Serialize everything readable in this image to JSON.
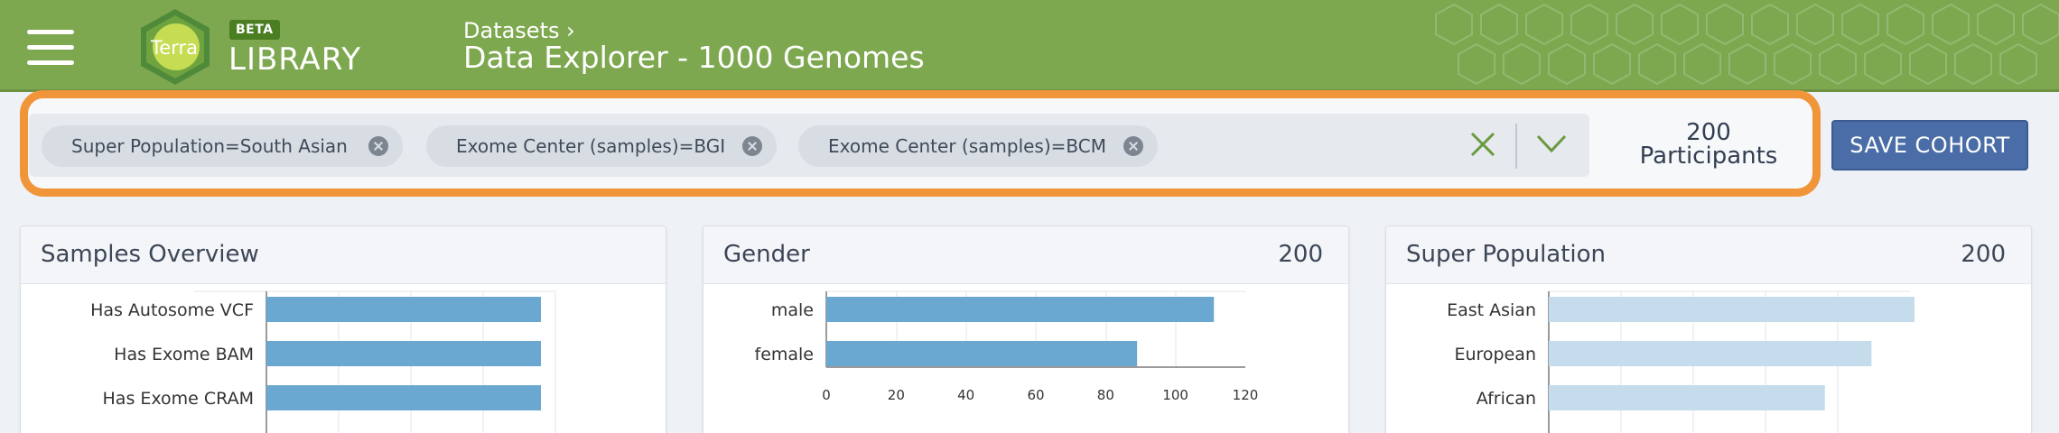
{
  "header": {
    "logo_text": "Terra",
    "beta_badge": "BETA",
    "library_label": "LIBRARY",
    "breadcrumb": "Datasets ›",
    "title": "Data Explorer - 1000 Genomes"
  },
  "filters": {
    "chips": [
      {
        "label": "Super Population=South Asian"
      },
      {
        "label": "Exome Center (samples)=BGI"
      },
      {
        "label": "Exome Center (samples)=BCM"
      }
    ],
    "count_number": "200",
    "count_label": "Participants",
    "save_label": "SAVE COHORT"
  },
  "colors": {
    "header_green": "#7ea850",
    "highlight_orange": "#f0953a",
    "save_blue": "#4a6da7",
    "bar_blue": "#6aa8d2",
    "bar_light_blue": "#c5dcec"
  },
  "cards": {
    "samples": {
      "title": "Samples Overview",
      "chart_data": {
        "type": "bar",
        "orientation": "horizontal",
        "categories": [
          "Has Autosome VCF",
          "Has Exome BAM",
          "Has Exome CRAM"
        ],
        "values": [
          200,
          200,
          200
        ]
      }
    },
    "gender": {
      "title": "Gender",
      "count": "200",
      "chart_data": {
        "type": "bar",
        "orientation": "horizontal",
        "categories": [
          "male",
          "female"
        ],
        "values": [
          111,
          89
        ],
        "xlim": [
          0,
          120
        ],
        "xticks": [
          "0",
          "20",
          "40",
          "60",
          "80",
          "100",
          "120"
        ]
      }
    },
    "population": {
      "title": "Super Population",
      "count": "200",
      "chart_data": {
        "type": "bar",
        "orientation": "horizontal",
        "categories": [
          "East Asian",
          "European",
          "African"
        ],
        "values": [
          102,
          90,
          77
        ]
      }
    }
  }
}
